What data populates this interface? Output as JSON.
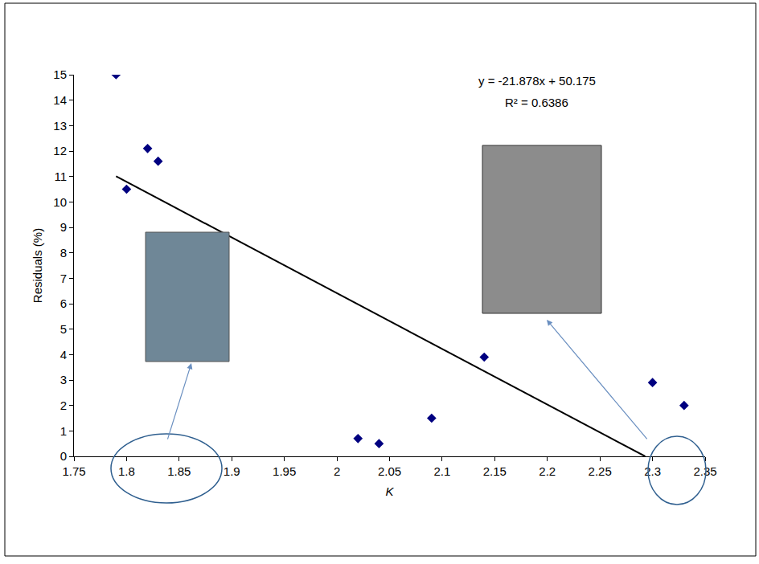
{
  "chart_data": {
    "type": "scatter",
    "x_title": "K",
    "y_title": "Residuals (%)",
    "annotations": [
      "y = -21.878x + 50.175",
      "R² = 0.6386"
    ],
    "xlim": [
      1.75,
      2.35
    ],
    "xticks": [
      1.75,
      1.8,
      1.85,
      1.9,
      1.95,
      2,
      2.05,
      2.1,
      2.15,
      2.2,
      2.25,
      2.3,
      2.35
    ],
    "ylim": [
      0,
      15
    ],
    "yticks": [
      0,
      1,
      2,
      3,
      4,
      5,
      6,
      7,
      8,
      9,
      10,
      11,
      12,
      13,
      14,
      15
    ],
    "grid": false,
    "series": [
      {
        "type": "scatter",
        "marker": "diamond",
        "color": "#000080",
        "x": [
          1.79,
          1.8,
          1.82,
          1.83,
          2.02,
          2.04,
          2.09,
          2.14,
          2.3,
          2.33
        ],
        "values": [
          15.0,
          10.5,
          12.1,
          11.6,
          0.7,
          0.5,
          1.5,
          3.9,
          2.9,
          2.0
        ]
      },
      {
        "type": "line",
        "line_style": "solid",
        "color": "#000000",
        "x": [
          1.79,
          2.293
        ],
        "values": [
          11.01,
          0
        ]
      }
    ]
  }
}
